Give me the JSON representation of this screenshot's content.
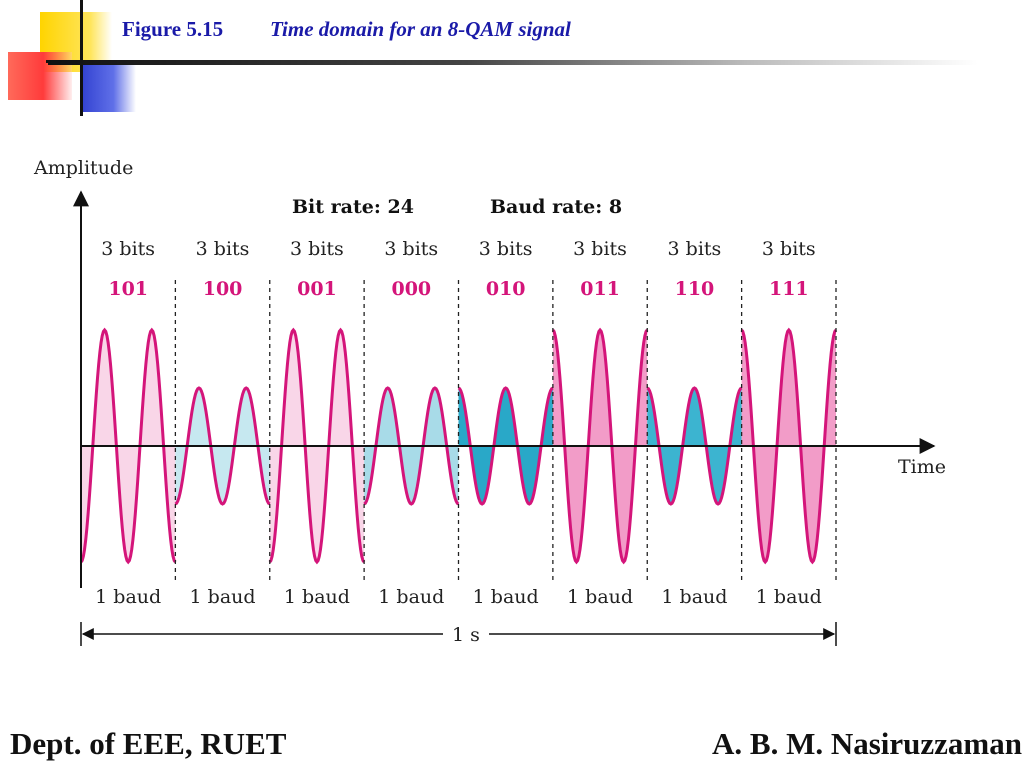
{
  "header": {
    "figure_number": "Figure 5.15",
    "figure_title": "Time domain for an 8-QAM signal"
  },
  "footer": {
    "left": "Dept. of EEE, RUET",
    "right": "A. B. M. Nasiruzzaman"
  },
  "chart_data": {
    "type": "line",
    "title": "Time domain for an 8-QAM signal",
    "ylabel": "Amplitude",
    "xlabel": "Time",
    "bit_rate_label": "Bit rate: 24",
    "baud_rate_label": "Baud rate: 8",
    "duration_label": "1 s",
    "bits_per_baud_label": "3 bits",
    "baud_label": "1 baud",
    "cycles_per_baud": 2,
    "segments": [
      {
        "bits": "101",
        "amplitude": 2,
        "phase": 0,
        "fill": "#f9d6e8"
      },
      {
        "bits": "100",
        "amplitude": 1,
        "phase": 0,
        "fill": "#c6e8f0"
      },
      {
        "bits": "001",
        "amplitude": 2,
        "phase": 0,
        "fill": "#f9d6e8"
      },
      {
        "bits": "000",
        "amplitude": 1,
        "phase": 0,
        "fill": "#a8dbe8"
      },
      {
        "bits": "010",
        "amplitude": 1,
        "phase": 180,
        "fill": "#29a8c8"
      },
      {
        "bits": "011",
        "amplitude": 2,
        "phase": 180,
        "fill": "#f29cc8"
      },
      {
        "bits": "110",
        "amplitude": 1,
        "phase": 180,
        "fill": "#3cb4d0"
      },
      {
        "bits": "111",
        "amplitude": 2,
        "phase": 180,
        "fill": "#f29cc8"
      }
    ],
    "colors": {
      "wave": "#d4157a",
      "bits_text": "#d4157a",
      "axis": "#111111"
    }
  }
}
